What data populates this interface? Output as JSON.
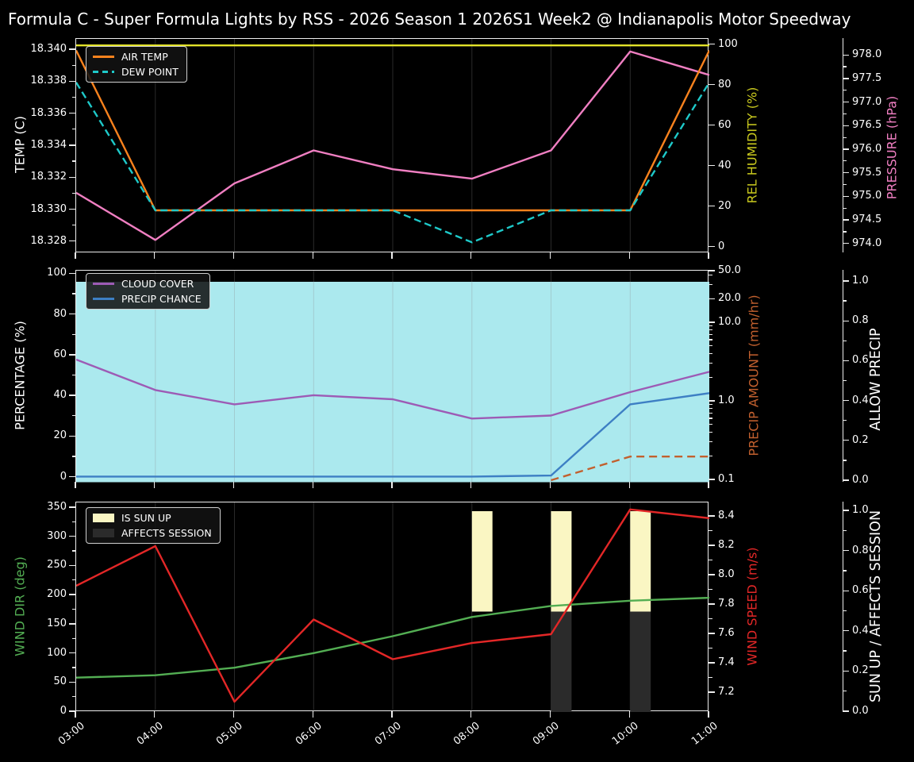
{
  "title": "Formula C - Super Formula Lights by RSS - 2026 Season 1 2026S1 Week2 @ Indianapolis Motor Speedway",
  "colors": {
    "background": "#000000",
    "text": "#ffffff",
    "spine": "#ededed"
  },
  "x_axis": {
    "tick_labels": [
      "03:00",
      "04:00",
      "05:00",
      "06:00",
      "07:00",
      "08:00",
      "09:00",
      "10:00",
      "11:00"
    ],
    "hours": [
      3,
      4,
      5,
      6,
      7,
      8,
      9,
      10,
      11
    ]
  },
  "chart_data": [
    {
      "type": "line",
      "panel": "temperature-humidity-pressure",
      "x": [
        3,
        4,
        5,
        6,
        7,
        8,
        9,
        10,
        11
      ],
      "axes": {
        "left": {
          "label": "TEMP (C)",
          "label_color": "#ffffff",
          "ticks": [
            18.34,
            18.338,
            18.336,
            18.334,
            18.332,
            18.33,
            18.328
          ],
          "tick_labels": [
            "18.340",
            "18.338",
            "18.336",
            "18.334",
            "18.332",
            "18.330",
            "18.328"
          ],
          "range": [
            18.3273,
            18.3403
          ]
        },
        "right_inner": {
          "label": "REL HUMIDITY (%)",
          "label_color": "#c9c91e",
          "ticks": [
            100,
            80,
            60,
            40,
            20,
            0
          ],
          "tick_labels": [
            "100",
            "80",
            "60",
            "40",
            "20",
            "0"
          ],
          "range": [
            0,
            100
          ]
        },
        "right_outer": {
          "label": "PRESSURE (hPa)",
          "label_color": "#f07fc2",
          "ticks": [
            978.0,
            977.5,
            977.0,
            976.5,
            976.0,
            975.5,
            975.0,
            974.5,
            974.0
          ],
          "tick_labels": [
            "978.0",
            "977.5",
            "977.0",
            "976.5",
            "976.0",
            "975.5",
            "975.0",
            "974.5",
            "974.0"
          ],
          "range": [
            974.0,
            978.0
          ]
        }
      },
      "series": [
        {
          "name": "AIR TEMP",
          "axis": "left",
          "color": "#f9821d",
          "dash": false,
          "values": [
            18.34,
            18.33,
            18.33,
            18.33,
            18.33,
            18.33,
            18.33,
            18.33,
            18.34
          ]
        },
        {
          "name": "DEW POINT",
          "axis": "left",
          "color": "#1ec9c9",
          "dash": true,
          "values": [
            18.338,
            18.33,
            18.33,
            18.33,
            18.33,
            18.328,
            18.33,
            18.33,
            18.338
          ]
        },
        {
          "name": "REL HUMIDITY",
          "axis": "right_inner",
          "color": "#e3e32a",
          "dash": false,
          "values": [
            100,
            100,
            100,
            100,
            100,
            100,
            100,
            100,
            100
          ]
        },
        {
          "name": "PRESSURE",
          "axis": "right_outer",
          "color": "#f07fc2",
          "dash": false,
          "values": [
            975.1,
            974.1,
            975.3,
            976.0,
            975.6,
            975.4,
            976.0,
            978.1,
            977.6
          ]
        }
      ],
      "legend": [
        "AIR TEMP",
        "DEW POINT"
      ]
    },
    {
      "type": "line",
      "panel": "cloud-precipitation",
      "x": [
        3,
        4,
        5,
        6,
        7,
        8,
        9,
        10,
        11
      ],
      "axes": {
        "left": {
          "label": "PERCENTAGE (%)",
          "label_color": "#ffffff",
          "ticks": [
            100,
            80,
            60,
            40,
            20,
            0
          ],
          "tick_labels": [
            "100",
            "80",
            "60",
            "40",
            "20",
            "0"
          ],
          "range": [
            0,
            100
          ]
        },
        "right_inner": {
          "label": "PRECIP AMOUNT (mm/hr)",
          "label_color": "#c2602e",
          "scale": "log",
          "ticks": [
            50,
            20,
            10,
            1,
            0.1
          ],
          "tick_labels": [
            "50.0",
            "20.0",
            "10.0",
            "1.0",
            "0.1"
          ],
          "range": [
            0.1,
            50
          ]
        },
        "right_outer": {
          "label": "ALLOW PRECIP",
          "label_color": "#ffffff",
          "ticks": [
            1.0,
            0.8,
            0.6,
            0.4,
            0.2,
            0.0
          ],
          "tick_labels": [
            "1.0",
            "0.8",
            "0.6",
            "0.4",
            "0.2",
            "0.0"
          ],
          "range": [
            0,
            1
          ]
        }
      },
      "fill": {
        "name": "allow-precip-region",
        "color": "#abe9ee",
        "value": 1.0
      },
      "series": [
        {
          "name": "CLOUD COVER",
          "axis": "left",
          "color": "#9d5bb5",
          "dash": false,
          "values": [
            58,
            43,
            36,
            40.5,
            38.5,
            29,
            30.5,
            42,
            52
          ]
        },
        {
          "name": "PRECIP CHANCE",
          "axis": "left",
          "color": "#3d7fc4",
          "dash": false,
          "values": [
            0.5,
            0.5,
            0.5,
            0.5,
            0.5,
            0.5,
            1,
            36,
            41.5
          ]
        },
        {
          "name": "PRECIP AMOUNT",
          "axis": "right_inner",
          "color": "#c2602e",
          "dash": true,
          "values": [
            null,
            null,
            null,
            null,
            null,
            null,
            0.1,
            0.2,
            0.2
          ]
        }
      ],
      "legend": [
        "CLOUD COVER",
        "PRECIP CHANCE"
      ]
    },
    {
      "type": "line+bar",
      "panel": "wind-sun",
      "x": [
        3,
        4,
        5,
        6,
        7,
        8,
        9,
        10,
        11
      ],
      "axes": {
        "left": {
          "label": "WIND DIR (deg)",
          "label_color": "#53ae53",
          "ticks": [
            350,
            300,
            250,
            200,
            150,
            100,
            50,
            0
          ],
          "tick_labels": [
            "350",
            "300",
            "250",
            "200",
            "150",
            "100",
            "50",
            "0"
          ],
          "range": [
            0,
            350
          ]
        },
        "right_inner": {
          "label": "WIND SPEED (m/s)",
          "label_color": "#e32727",
          "ticks": [
            8.4,
            8.2,
            8.0,
            7.8,
            7.6,
            7.4,
            7.2
          ],
          "tick_labels": [
            "8.4",
            "8.2",
            "8.0",
            "7.8",
            "7.6",
            "7.4",
            "7.2"
          ],
          "range": [
            7.1,
            8.5
          ]
        },
        "right_outer": {
          "label": "SUN UP / AFFECTS SESSION",
          "label_color": "#ffffff",
          "ticks": [
            1.0,
            0.8,
            0.6,
            0.4,
            0.2,
            0.0
          ],
          "tick_labels": [
            "1.0",
            "0.8",
            "0.6",
            "0.4",
            "0.2",
            "0.0"
          ],
          "range": [
            0,
            1
          ]
        }
      },
      "bars": {
        "sun_up": {
          "name": "IS SUN UP",
          "color": "#faf6c3",
          "intervals": [
            [
              8.0,
              8.26
            ],
            [
              9.0,
              9.26
            ],
            [
              10.0,
              10.26
            ]
          ],
          "y_range": [
            0.5,
            1.0
          ]
        },
        "affects": {
          "name": "AFFECTS SESSION",
          "color": "#2b2b2b",
          "intervals": [
            [
              9.0,
              9.26
            ],
            [
              10.0,
              10.26
            ]
          ],
          "y_range": [
            0.0,
            0.5
          ]
        }
      },
      "series": [
        {
          "name": "WIND DIR",
          "axis": "left",
          "color": "#53ae53",
          "dash": false,
          "values": [
            59,
            63,
            76,
            101,
            130,
            163,
            182,
            191,
            196
          ]
        },
        {
          "name": "WIND SPEED",
          "axis": "right_inner",
          "color": "#e32727",
          "dash": false,
          "values": [
            7.93,
            8.2,
            7.14,
            7.7,
            7.43,
            7.54,
            7.6,
            8.45,
            8.39
          ]
        }
      ],
      "legend": [
        "IS SUN UP",
        "AFFECTS SESSION"
      ]
    }
  ]
}
